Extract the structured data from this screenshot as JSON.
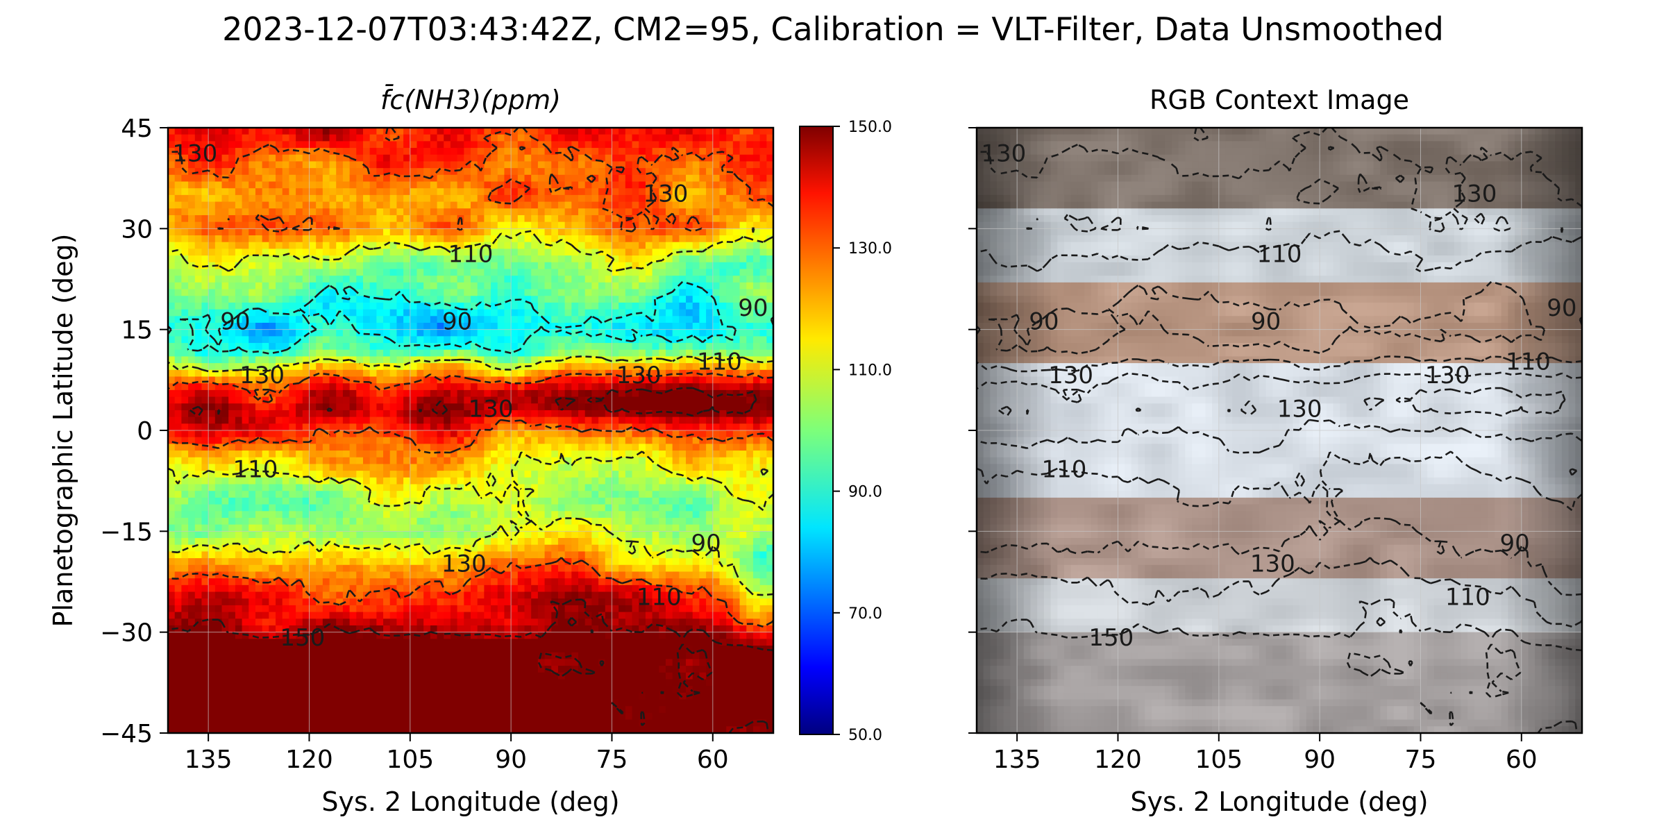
{
  "suptitle": "2023-12-07T03:43:42Z, CM2=95, Calibration = VLT-Filter, Data Unsmoothed",
  "chart_data": [
    {
      "type": "heatmap",
      "title": "f̄c(NH3)(ppm)",
      "xlabel": "Sys. 2 Longitude (deg)",
      "ylabel": "Planetographic Latitude (deg)",
      "xlim": [
        141,
        51
      ],
      "ylim": [
        -45,
        45
      ],
      "x_ticks": [
        "135",
        "120",
        "105",
        "90",
        "75",
        "60"
      ],
      "x_tick_values": [
        135,
        120,
        105,
        90,
        75,
        60
      ],
      "y_ticks": [
        "45",
        "30",
        "15",
        "0",
        "−15",
        "−30",
        "−45"
      ],
      "y_tick_values": [
        45,
        30,
        15,
        0,
        -15,
        -30,
        -45
      ],
      "colormap": "jet",
      "clim": [
        50,
        150
      ],
      "colorbar_ticks": [
        "150.0",
        "130.0",
        "110.0",
        "90.0",
        "70.0",
        "50.0"
      ],
      "colorbar_tick_values": [
        150,
        130,
        110,
        90,
        70,
        50
      ],
      "contour_levels": [
        90,
        110,
        130,
        150
      ],
      "contour_labels": [
        {
          "text": "130",
          "lon": 137,
          "lat": 41
        },
        {
          "text": "130",
          "lon": 67,
          "lat": 35
        },
        {
          "text": "110",
          "lon": 96,
          "lat": 26
        },
        {
          "text": "90",
          "lon": 131,
          "lat": 16
        },
        {
          "text": "90",
          "lon": 98,
          "lat": 16
        },
        {
          "text": "90",
          "lon": 54,
          "lat": 18
        },
        {
          "text": "110",
          "lon": 59,
          "lat": 10
        },
        {
          "text": "130",
          "lon": 127,
          "lat": 8
        },
        {
          "text": "130",
          "lon": 71,
          "lat": 8
        },
        {
          "text": "130",
          "lon": 93,
          "lat": 3
        },
        {
          "text": "110",
          "lon": 128,
          "lat": -6
        },
        {
          "text": "130",
          "lon": 97,
          "lat": -20
        },
        {
          "text": "90",
          "lon": 61,
          "lat": -17
        },
        {
          "text": "110",
          "lon": 68,
          "lat": -25
        },
        {
          "text": "150",
          "lon": 121,
          "lat": -31
        }
      ],
      "latitude_profile_ppm": [
        {
          "lat": 45,
          "value": 140
        },
        {
          "lat": 40,
          "value": 130
        },
        {
          "lat": 35,
          "value": 125
        },
        {
          "lat": 30,
          "value": 120
        },
        {
          "lat": 26,
          "value": 108
        },
        {
          "lat": 22,
          "value": 98
        },
        {
          "lat": 18,
          "value": 90
        },
        {
          "lat": 15,
          "value": 88
        },
        {
          "lat": 12,
          "value": 95
        },
        {
          "lat": 9,
          "value": 118
        },
        {
          "lat": 6,
          "value": 136
        },
        {
          "lat": 3,
          "value": 142
        },
        {
          "lat": 0,
          "value": 133
        },
        {
          "lat": -4,
          "value": 115
        },
        {
          "lat": -8,
          "value": 108
        },
        {
          "lat": -12,
          "value": 104
        },
        {
          "lat": -16,
          "value": 108
        },
        {
          "lat": -20,
          "value": 124
        },
        {
          "lat": -24,
          "value": 136
        },
        {
          "lat": -28,
          "value": 142
        },
        {
          "lat": -32,
          "value": 155
        },
        {
          "lat": -45,
          "value": 155
        }
      ]
    },
    {
      "type": "image",
      "title": "RGB Context Image",
      "xlabel": "Sys. 2 Longitude (deg)",
      "xlim": [
        141,
        51
      ],
      "ylim": [
        -45,
        45
      ],
      "x_ticks": [
        "135",
        "120",
        "105",
        "90",
        "75",
        "60"
      ],
      "x_tick_values": [
        135,
        120,
        105,
        90,
        75,
        60
      ],
      "contour_levels": [
        90,
        110,
        130,
        150
      ],
      "contour_labels": [
        {
          "text": "130",
          "lon": 137,
          "lat": 41
        },
        {
          "text": "130",
          "lon": 67,
          "lat": 35
        },
        {
          "text": "110",
          "lon": 96,
          "lat": 26
        },
        {
          "text": "90",
          "lon": 131,
          "lat": 16
        },
        {
          "text": "90",
          "lon": 98,
          "lat": 16
        },
        {
          "text": "90",
          "lon": 54,
          "lat": 18
        },
        {
          "text": "110",
          "lon": 59,
          "lat": 10
        },
        {
          "text": "130",
          "lon": 127,
          "lat": 8
        },
        {
          "text": "130",
          "lon": 71,
          "lat": 8
        },
        {
          "text": "130",
          "lon": 93,
          "lat": 3
        },
        {
          "text": "110",
          "lon": 128,
          "lat": -6
        },
        {
          "text": "130",
          "lon": 97,
          "lat": -20
        },
        {
          "text": "90",
          "lon": 61,
          "lat": -17
        },
        {
          "text": "110",
          "lon": 68,
          "lat": -25
        },
        {
          "text": "150",
          "lon": 121,
          "lat": -31
        }
      ]
    }
  ],
  "colors": {
    "contour": "#1a1a1a",
    "grid": "#c8c8c8",
    "axis": "#000000"
  }
}
